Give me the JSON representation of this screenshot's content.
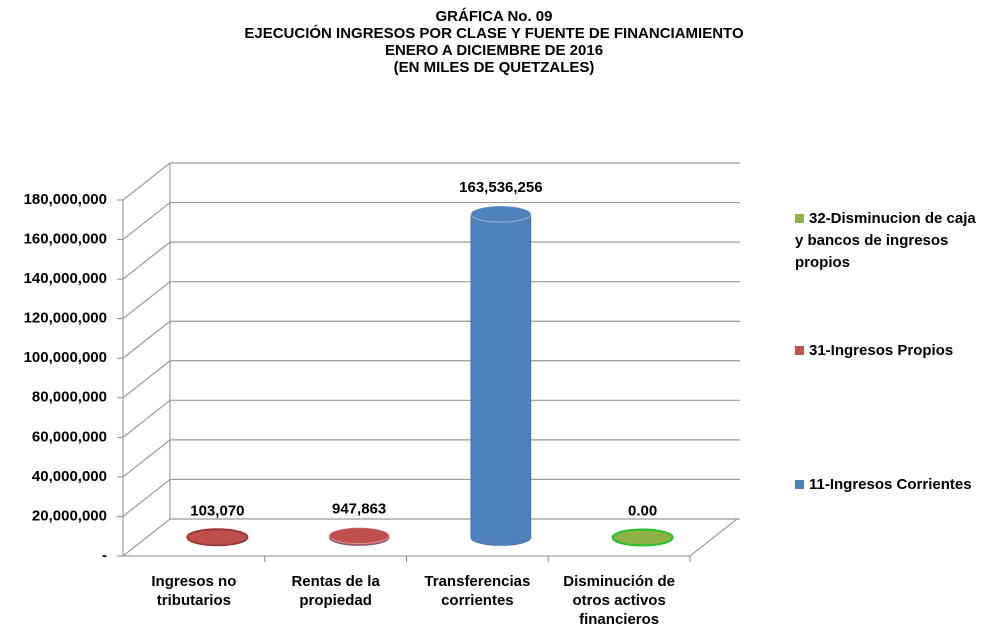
{
  "chart_data": {
    "type": "bar3d",
    "title": "GRÁFICA No.  09",
    "subtitle": [
      "EJECUCIÓN INGRESOS POR CLASE Y FUENTE DE FINANCIAMIENTO",
      "ENERO A DICIEMBRE DE 2016",
      "(EN MILES DE QUETZALES)"
    ],
    "categories": [
      "Ingresos no tributarios",
      "Rentas de la propiedad",
      "Transferencias corrientes",
      "Disminución de otros activos financieros"
    ],
    "series": [
      {
        "name": "32-Disminucion de caja y bancos de ingresos propios",
        "color": "#8db346",
        "values": [
          null,
          null,
          null,
          0
        ],
        "value_labels": [
          null,
          null,
          null,
          "0.00"
        ]
      },
      {
        "name": "31-Ingresos Propios",
        "color": "#c0504d",
        "values": [
          103070,
          947863,
          null,
          null
        ],
        "value_labels": [
          "103,070",
          "947,863",
          null,
          null
        ]
      },
      {
        "name": "11-Ingresos Corrientes",
        "color": "#4f81bd",
        "values": [
          null,
          null,
          163536256,
          null
        ],
        "value_labels": [
          null,
          null,
          "163,536,256",
          null
        ]
      }
    ],
    "ylim": [
      0,
      180000000
    ],
    "yticks": [
      {
        "value": 0,
        "label": "-"
      },
      {
        "value": 20000000,
        "label": "20,000,000"
      },
      {
        "value": 40000000,
        "label": "40,000,000"
      },
      {
        "value": 60000000,
        "label": "60,000,000"
      },
      {
        "value": 80000000,
        "label": "80,000,000"
      },
      {
        "value": 100000000,
        "label": "100,000,000"
      },
      {
        "value": 120000000,
        "label": "120,000,000"
      },
      {
        "value": 140000000,
        "label": "140,000,000"
      },
      {
        "value": 160000000,
        "label": "160,000,000"
      },
      {
        "value": 180000000,
        "label": "180,000,000"
      }
    ],
    "grid": true
  }
}
